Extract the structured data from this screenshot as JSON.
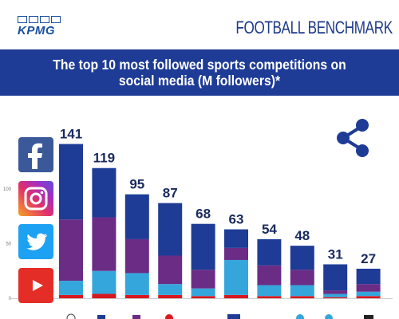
{
  "header": {
    "logo_text": "KPMG",
    "brand": "FOOTBALL BENCHMARK"
  },
  "title": "The top 10 most followed sports competitions on social media (M followers)*",
  "social_icons": [
    "facebook-icon",
    "instagram-icon",
    "twitter-icon",
    "youtube-icon"
  ],
  "colors": {
    "facebook": "#1e3b96",
    "instagram": "#6b2c86",
    "twitter": "#35a6dc",
    "youtube": "#d7191f",
    "band": "#1e3b96"
  },
  "chart_data": {
    "type": "bar",
    "stacked": true,
    "ylim": [
      0,
      150
    ],
    "yticks": [
      "0",
      "50",
      "100"
    ],
    "totals": [
      141,
      119,
      95,
      87,
      68,
      63,
      54,
      48,
      31,
      27
    ],
    "series": [
      {
        "key": "youtube",
        "values": [
          3,
          4,
          3,
          3,
          2,
          3,
          2,
          2,
          1,
          2
        ]
      },
      {
        "key": "twitter",
        "values": [
          13,
          21,
          20,
          10,
          7,
          32,
          10,
          10,
          3,
          4
        ]
      },
      {
        "key": "instagram",
        "values": [
          56,
          49,
          31,
          26,
          17,
          11,
          18,
          14,
          3,
          7
        ]
      },
      {
        "key": "facebook",
        "values": [
          69,
          45,
          41,
          48,
          42,
          17,
          24,
          22,
          24,
          14
        ]
      }
    ]
  }
}
